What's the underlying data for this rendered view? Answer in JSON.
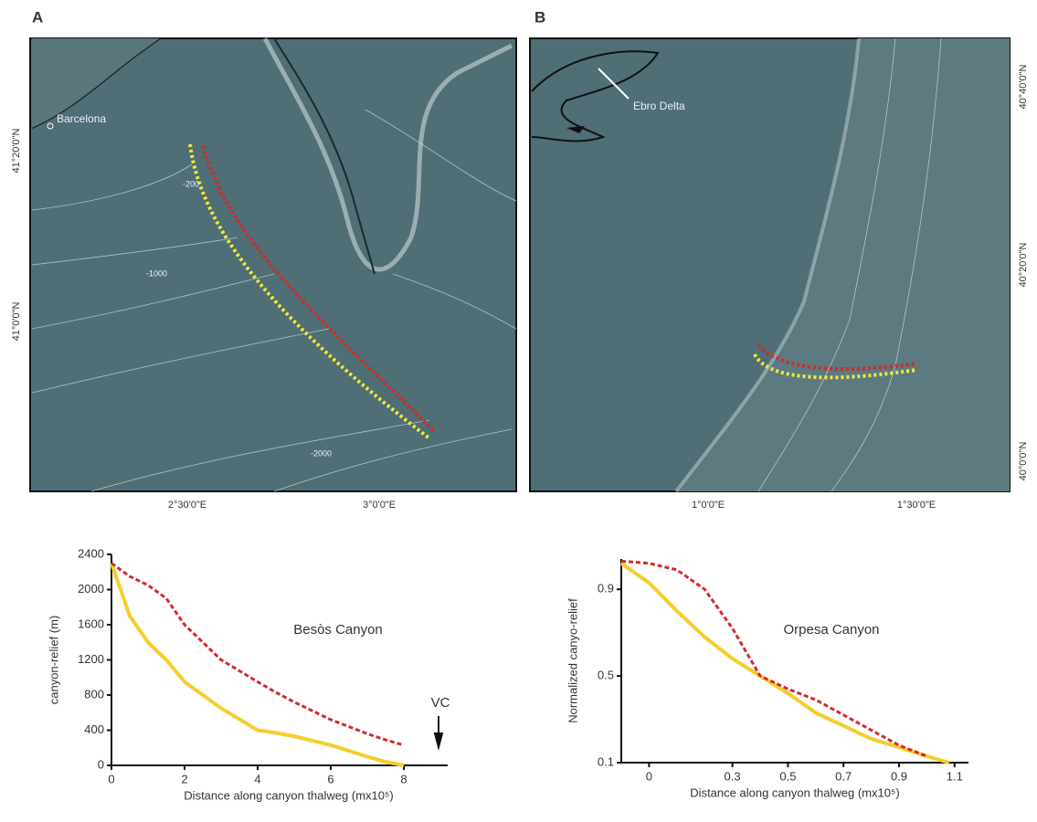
{
  "panel_labels": [
    "A",
    "B"
  ],
  "maps": [
    {
      "place_labels": [
        "Barcelona"
      ],
      "contour_labels": [
        "-200",
        "-1000",
        "-2000"
      ],
      "lat_labels": [
        "41°20'0\"N",
        "41°0'0\"N"
      ],
      "lon_labels": [
        "2°30'0\"E",
        "3°0'0\"E"
      ]
    },
    {
      "place_labels": [
        "Ebro  Delta"
      ],
      "lat_labels": [
        "40°40'0\"N",
        "40°20'0\"N",
        "40°0'0\"N"
      ],
      "lon_labels": [
        "1°0'0\"E",
        "1°30'0\"E"
      ]
    }
  ],
  "chart_data": [
    {
      "type": "line",
      "title": "Besòs Canyon",
      "annotations": [
        "VC"
      ],
      "x_label": "Distance along canyon thalweg (mx10⁵)",
      "y_label": "canyon-relief (m)",
      "x": [
        0,
        0.5,
        1,
        1.5,
        2,
        3,
        4,
        4.5,
        5,
        6,
        7,
        7.5,
        8
      ],
      "series": [
        {
          "color": "#f5cd2e",
          "style": "solid",
          "values": [
            2300,
            1700,
            1400,
            1200,
            950,
            650,
            400,
            370,
            330,
            230,
            100,
            40,
            0
          ]
        },
        {
          "color": "#d42a2a",
          "style": "dashed",
          "values": [
            2300,
            2150,
            2050,
            1900,
            1600,
            1200,
            950,
            830,
            720,
            520,
            360,
            290,
            230
          ]
        }
      ],
      "xlim": [
        0,
        9.2
      ],
      "ylim": [
        0,
        2400
      ],
      "xticks": [
        0,
        2,
        4,
        6,
        8
      ],
      "yticks": [
        0,
        400,
        800,
        1200,
        1600,
        2000,
        2400
      ],
      "grid": false
    },
    {
      "type": "line",
      "title": "Orpesa Canyon",
      "x_label": "Distance along canyon thalweg (mx10⁵)",
      "y_label": "Normalized canyo-relief",
      "x": [
        -0.1,
        0,
        0.1,
        0.2,
        0.3,
        0.4,
        0.5,
        0.6,
        0.7,
        0.8,
        0.9,
        1.0,
        1.08
      ],
      "series": [
        {
          "color": "#f5cd2e",
          "style": "solid",
          "values": [
            1.02,
            0.93,
            0.8,
            0.68,
            0.58,
            0.5,
            0.42,
            0.33,
            0.27,
            0.21,
            0.17,
            0.13,
            0.1
          ]
        },
        {
          "color": "#d42a2a",
          "style": "dashed",
          "values": [
            1.03,
            1.02,
            0.99,
            0.9,
            0.72,
            0.5,
            0.44,
            0.39,
            0.32,
            0.25,
            0.18,
            0.13,
            null
          ]
        }
      ],
      "xlim": [
        -0.1,
        1.15
      ],
      "ylim": [
        0.1,
        1.04
      ],
      "xticks": [
        0,
        0.3,
        0.5,
        0.7,
        0.9,
        1.1
      ],
      "yticks": [
        0.1,
        0.5,
        0.9
      ],
      "grid": false
    }
  ]
}
